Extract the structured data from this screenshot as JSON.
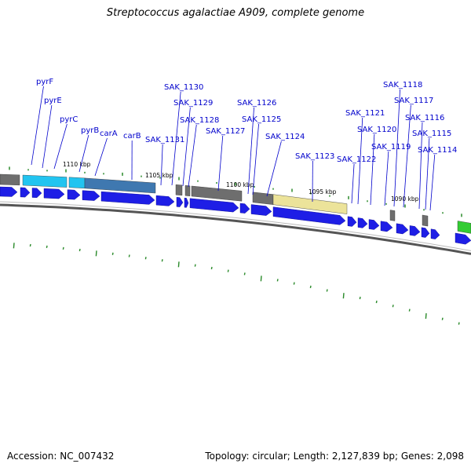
{
  "title": "Streptococcus agalactiae A909, complete genome",
  "footer": {
    "accession": "Accession: NC_007432",
    "summary": "Topology: circular; Length: 2,127,839 bp; Genes: 2,098"
  },
  "colors": {
    "forward_cds": "#1e1ee6",
    "gene_block_gray": "#6e6e6e",
    "gene_block_cyan": "#22c4f0",
    "gene_block_steel": "#3f78b0",
    "gene_block_yellow": "#ece39a",
    "gene_block_green": "#33cc33",
    "tick_green": "#2a8a2a",
    "label_blue": "#0000cc",
    "leader_line": "#0000cc"
  },
  "scale_labels": [
    "1110 kbp",
    "1105 kbp",
    "1100 kbp",
    "1095 kbp",
    "1090 kbp"
  ],
  "genes": [
    {
      "name": "pyrF"
    },
    {
      "name": "pyrE"
    },
    {
      "name": "pyrC"
    },
    {
      "name": "pyrB"
    },
    {
      "name": "carA"
    },
    {
      "name": "carB"
    },
    {
      "name": "SAK_1131"
    },
    {
      "name": "SAK_1130"
    },
    {
      "name": "SAK_1129"
    },
    {
      "name": "SAK_1128"
    },
    {
      "name": "SAK_1127"
    },
    {
      "name": "SAK_1126"
    },
    {
      "name": "SAK_1125"
    },
    {
      "name": "SAK_1124"
    },
    {
      "name": "SAK_1123"
    },
    {
      "name": "SAK_1122"
    },
    {
      "name": "SAK_1121"
    },
    {
      "name": "SAK_1120"
    },
    {
      "name": "SAK_1119"
    },
    {
      "name": "SAK_1118"
    },
    {
      "name": "SAK_1117"
    },
    {
      "name": "SAK_1116"
    },
    {
      "name": "SAK_1115"
    },
    {
      "name": "SAK_1114"
    }
  ]
}
